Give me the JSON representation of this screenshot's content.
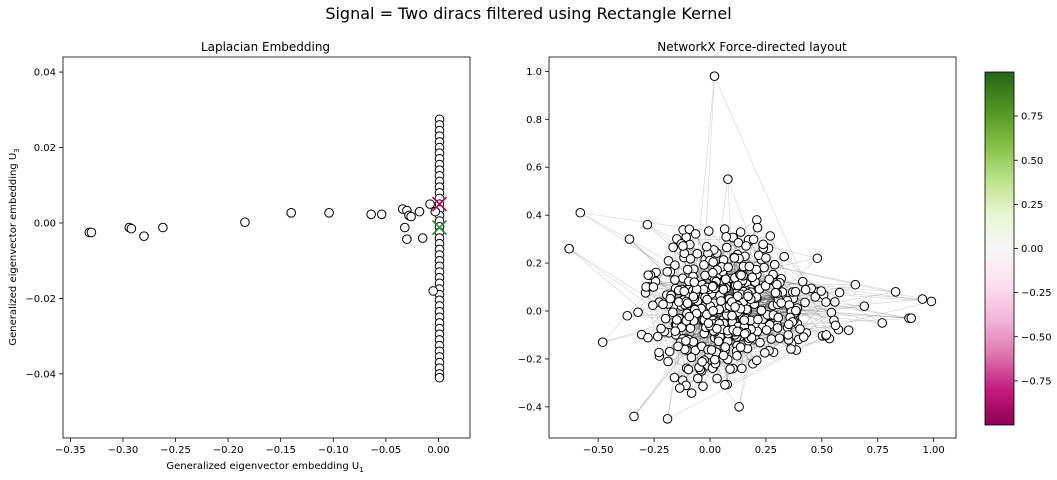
{
  "figure": {
    "title": "Signal = Two diracs filtered using Rectangle Kernel"
  },
  "chart_data": [
    {
      "type": "scatter",
      "title": "Laplacian Embedding",
      "xlabel": "Generalized eigenvector embedding U",
      "xlabel_sub": "1",
      "ylabel": "Generalized eigenvector embedding U",
      "ylabel_sub": "3",
      "xlim": [
        -0.357,
        0.03
      ],
      "ylim": [
        -0.057,
        0.044
      ],
      "xticks": [
        -0.35,
        -0.3,
        -0.25,
        -0.2,
        -0.15,
        -0.1,
        -0.05,
        0.0
      ],
      "xtick_labels": [
        "−0.35",
        "−0.30",
        "−0.25",
        "−0.20",
        "−0.15",
        "−0.10",
        "−0.05",
        "0.00"
      ],
      "yticks": [
        -0.04,
        -0.02,
        0.0,
        0.02,
        0.04
      ],
      "ytick_labels": [
        "−0.04",
        "−0.02",
        "0.00",
        "0.02",
        "0.04"
      ],
      "points": [
        [
          -0.332,
          -0.0025
        ],
        [
          -0.33,
          -0.0025
        ],
        [
          -0.294,
          -0.0012
        ],
        [
          -0.292,
          -0.0015
        ],
        [
          -0.28,
          -0.0035
        ],
        [
          -0.262,
          -0.0012
        ],
        [
          -0.184,
          0.0002
        ],
        [
          -0.14,
          0.0027
        ],
        [
          -0.104,
          0.0027
        ],
        [
          -0.064,
          0.0023
        ],
        [
          -0.054,
          0.0023
        ],
        [
          -0.034,
          0.0037
        ],
        [
          -0.03,
          0.0033
        ],
        [
          -0.032,
          -0.0012
        ],
        [
          -0.03,
          -0.0043
        ],
        [
          -0.028,
          0.002
        ],
        [
          -0.026,
          0.0017
        ],
        [
          -0.018,
          0.003
        ],
        [
          -0.015,
          -0.004
        ],
        [
          -0.008,
          0.005
        ],
        [
          -0.005,
          -0.018
        ],
        [
          -0.003,
          0.003
        ]
      ],
      "column_points": {
        "x": 0.001,
        "y": [
          0.0275,
          0.026,
          0.0245,
          0.023,
          0.0215,
          0.02,
          0.0185,
          0.017,
          0.0155,
          0.014,
          0.0125,
          0.011,
          0.0095,
          0.008,
          0.0065,
          0.005,
          0.0035,
          0.002,
          0.0005,
          -0.001,
          -0.0025,
          -0.004,
          -0.0055,
          -0.007,
          -0.0085,
          -0.01,
          -0.0115,
          -0.013,
          -0.0145,
          -0.016,
          -0.0175,
          -0.019,
          -0.0205,
          -0.022,
          -0.0235,
          -0.025,
          -0.0265,
          -0.028,
          -0.0295,
          -0.031,
          -0.0325,
          -0.034,
          -0.0355,
          -0.037,
          -0.0385,
          -0.04,
          -0.041
        ]
      },
      "markers": [
        {
          "shape": "x",
          "x": 0.001,
          "y": 0.005,
          "color": "#b0005a"
        },
        {
          "shape": "x",
          "x": 0.001,
          "y": -0.0012,
          "color": "#2e8b2e"
        }
      ]
    },
    {
      "type": "scatter",
      "title": "NetworkX Force-directed layout",
      "xlim": [
        -0.72,
        1.1
      ],
      "ylim": [
        -0.53,
        1.06
      ],
      "xticks": [
        -0.5,
        -0.25,
        0.0,
        0.25,
        0.5,
        0.75,
        1.0
      ],
      "xtick_labels": [
        "−0.50",
        "−0.25",
        "0.00",
        "0.25",
        "0.50",
        "0.75",
        "1.00"
      ],
      "yticks": [
        -0.4,
        -0.2,
        0.0,
        0.2,
        0.4,
        0.6,
        0.8,
        1.0
      ],
      "ytick_labels": [
        "−0.4",
        "−0.2",
        "0.0",
        "0.2",
        "0.4",
        "0.6",
        "0.8",
        "1.0"
      ],
      "outlier_points": [
        [
          0.02,
          0.98
        ],
        [
          -0.58,
          0.41
        ],
        [
          -0.63,
          0.26
        ],
        [
          -0.48,
          -0.13
        ],
        [
          -0.34,
          -0.44
        ],
        [
          -0.19,
          -0.45
        ],
        [
          0.13,
          -0.4
        ],
        [
          0.08,
          0.55
        ],
        [
          0.95,
          0.05
        ],
        [
          0.99,
          0.04
        ],
        [
          0.89,
          -0.03
        ],
        [
          0.9,
          -0.03
        ],
        [
          0.83,
          0.08
        ],
        [
          0.77,
          -0.05
        ],
        [
          0.69,
          0.02
        ],
        [
          0.65,
          0.11
        ],
        [
          0.62,
          -0.08
        ],
        [
          0.52,
          -0.1
        ],
        [
          0.48,
          0.22
        ],
        [
          -0.36,
          0.3
        ],
        [
          -0.28,
          0.36
        ],
        [
          -0.37,
          -0.02
        ]
      ],
      "colorbar": {
        "ticks": [
          0.75,
          0.5,
          0.25,
          0.0,
          -0.25,
          -0.5,
          -0.75
        ],
        "tick_labels": [
          "0.75",
          "0.50",
          "0.25",
          "0.00",
          "−0.25",
          "−0.50",
          "−0.75"
        ],
        "range": [
          -1.0,
          1.0
        ],
        "colormap": "PiYG",
        "colors": [
          "#8e0152",
          "#c51b7d",
          "#de77ae",
          "#f1b6da",
          "#fde0ef",
          "#f7f7f7",
          "#e6f5d0",
          "#b8e186",
          "#7fbc41",
          "#4d9221",
          "#276419"
        ]
      }
    }
  ]
}
